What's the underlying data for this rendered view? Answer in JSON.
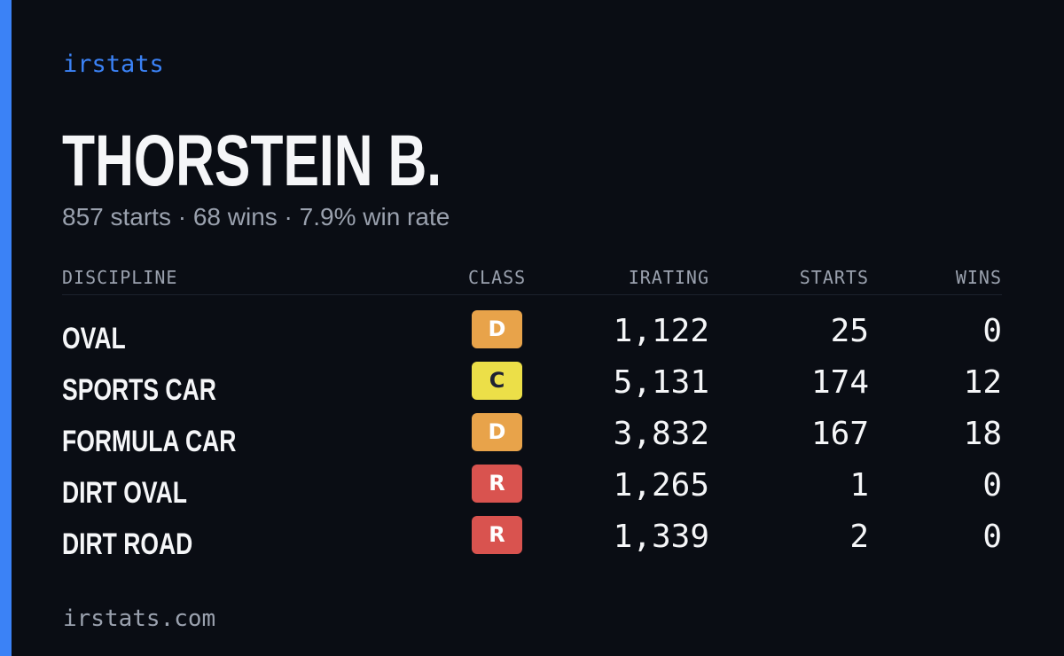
{
  "brand": {
    "name": "irstats",
    "domain": "irstats.com",
    "accent_color": "#3b82f6"
  },
  "driver": {
    "name": "THORSTEIN B.",
    "summary": "857 starts · 68 wins · 7.9% win rate"
  },
  "table": {
    "headers": {
      "discipline": "DISCIPLINE",
      "class": "CLASS",
      "irating": "IRATING",
      "starts": "STARTS",
      "wins": "WINS"
    },
    "rows": [
      {
        "discipline": "OVAL",
        "class": "D",
        "irating": "1,122",
        "starts": "25",
        "wins": "0"
      },
      {
        "discipline": "SPORTS CAR",
        "class": "C",
        "irating": "5,131",
        "starts": "174",
        "wins": "12"
      },
      {
        "discipline": "FORMULA CAR",
        "class": "D",
        "irating": "3,832",
        "starts": "167",
        "wins": "18"
      },
      {
        "discipline": "DIRT OVAL",
        "class": "R",
        "irating": "1,265",
        "starts": "1",
        "wins": "0"
      },
      {
        "discipline": "DIRT ROAD",
        "class": "R",
        "irating": "1,339",
        "starts": "2",
        "wins": "0"
      }
    ]
  },
  "class_colors": {
    "D": {
      "bg": "#e8a34a",
      "fg": "#ffffff"
    },
    "C": {
      "bg": "#ecdf48",
      "fg": "#1f2233"
    },
    "R": {
      "bg": "#d9534f",
      "fg": "#ffffff"
    }
  }
}
